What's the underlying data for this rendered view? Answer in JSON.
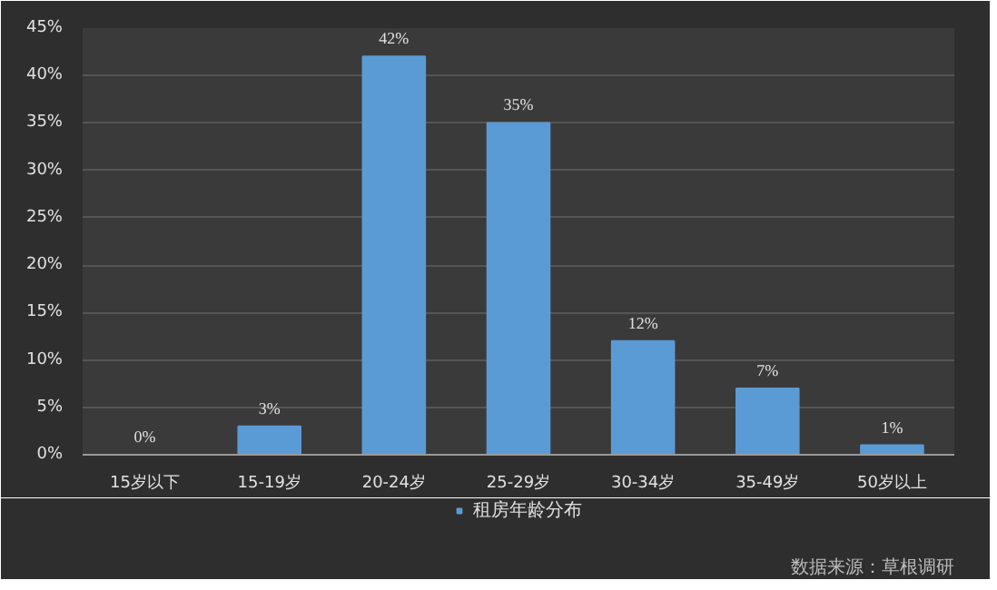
{
  "chart_data": {
    "type": "bar",
    "categories": [
      "15岁以下",
      "15-19岁",
      "20-24岁",
      "25-29岁",
      "30-34岁",
      "35-49岁",
      "50岁以上"
    ],
    "series": [
      {
        "name": "租房年龄分布",
        "color": "#5b9bd5",
        "values": [
          0,
          3,
          42,
          35,
          12,
          7,
          1
        ],
        "value_labels": [
          "0%",
          "3%",
          "42%",
          "35%",
          "12%",
          "7%",
          "1%"
        ]
      }
    ],
    "ylim": [
      0,
      45
    ],
    "yticks": [
      {
        "value": 0,
        "label": "0%"
      },
      {
        "value": 5,
        "label": "5%"
      },
      {
        "value": 10,
        "label": "10%"
      },
      {
        "value": 15,
        "label": "15%"
      },
      {
        "value": 20,
        "label": "20%"
      },
      {
        "value": 25,
        "label": "25%"
      },
      {
        "value": 30,
        "label": "30%"
      },
      {
        "value": 35,
        "label": "35%"
      },
      {
        "value": 40,
        "label": "40%"
      },
      {
        "value": 45,
        "label": "45%"
      }
    ],
    "grid": "y",
    "legend": "bottom",
    "annotations": [
      "数据来源：草根调研"
    ]
  }
}
